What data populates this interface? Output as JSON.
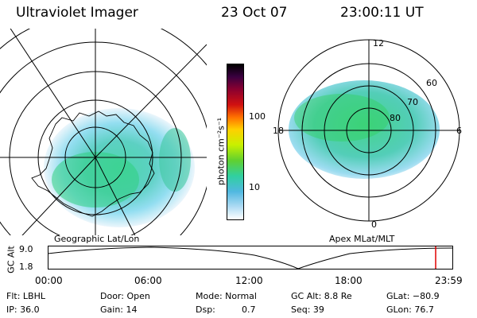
{
  "header": {
    "instrument": "Ultraviolet Imager",
    "date": "23 Oct 07",
    "time": "23:00:11 UT"
  },
  "left_panel": {
    "label": "Geographic Lat/Lon"
  },
  "right_panel": {
    "label": "Apex MLat/MLT",
    "mlt_labels": [
      "12",
      "18",
      "6",
      "0"
    ],
    "lat_labels": [
      "60",
      "70",
      "80"
    ]
  },
  "colorbar": {
    "unit_label": "photon cm⁻²s⁻¹",
    "ticks": [
      "100",
      "10"
    ],
    "colors": [
      "#000000",
      "#2a0030",
      "#5a0048",
      "#8a0030",
      "#c00000",
      "#e03000",
      "#ff7000",
      "#ffb000",
      "#ffe000",
      "#e0f000",
      "#90e000",
      "#50d040",
      "#30d080",
      "#30c8b0",
      "#50b8e0",
      "#90d0f0",
      "#d0e8f8",
      "#ffffff"
    ]
  },
  "altitude_plot": {
    "ylabel": "GC Alt",
    "y_ticks": [
      "9.0",
      "1.8"
    ],
    "x_ticks": [
      "00:00",
      "06:00",
      "12:00",
      "18:00",
      "23:59"
    ],
    "marker_color": "#e00000"
  },
  "info": {
    "flt": "Flt: LBHL",
    "ip": "IP: 36.0",
    "door": "Door: Open",
    "gain": "Gain: 14",
    "mode": "Mode: Normal",
    "dsp_label": "Dsp:",
    "dsp_value": "0.7",
    "gc_alt": "GC Alt: 8.8 Re",
    "seq": "Seq: 39",
    "glat": "GLat: −80.9",
    "glon": "GLon: 76.7"
  }
}
